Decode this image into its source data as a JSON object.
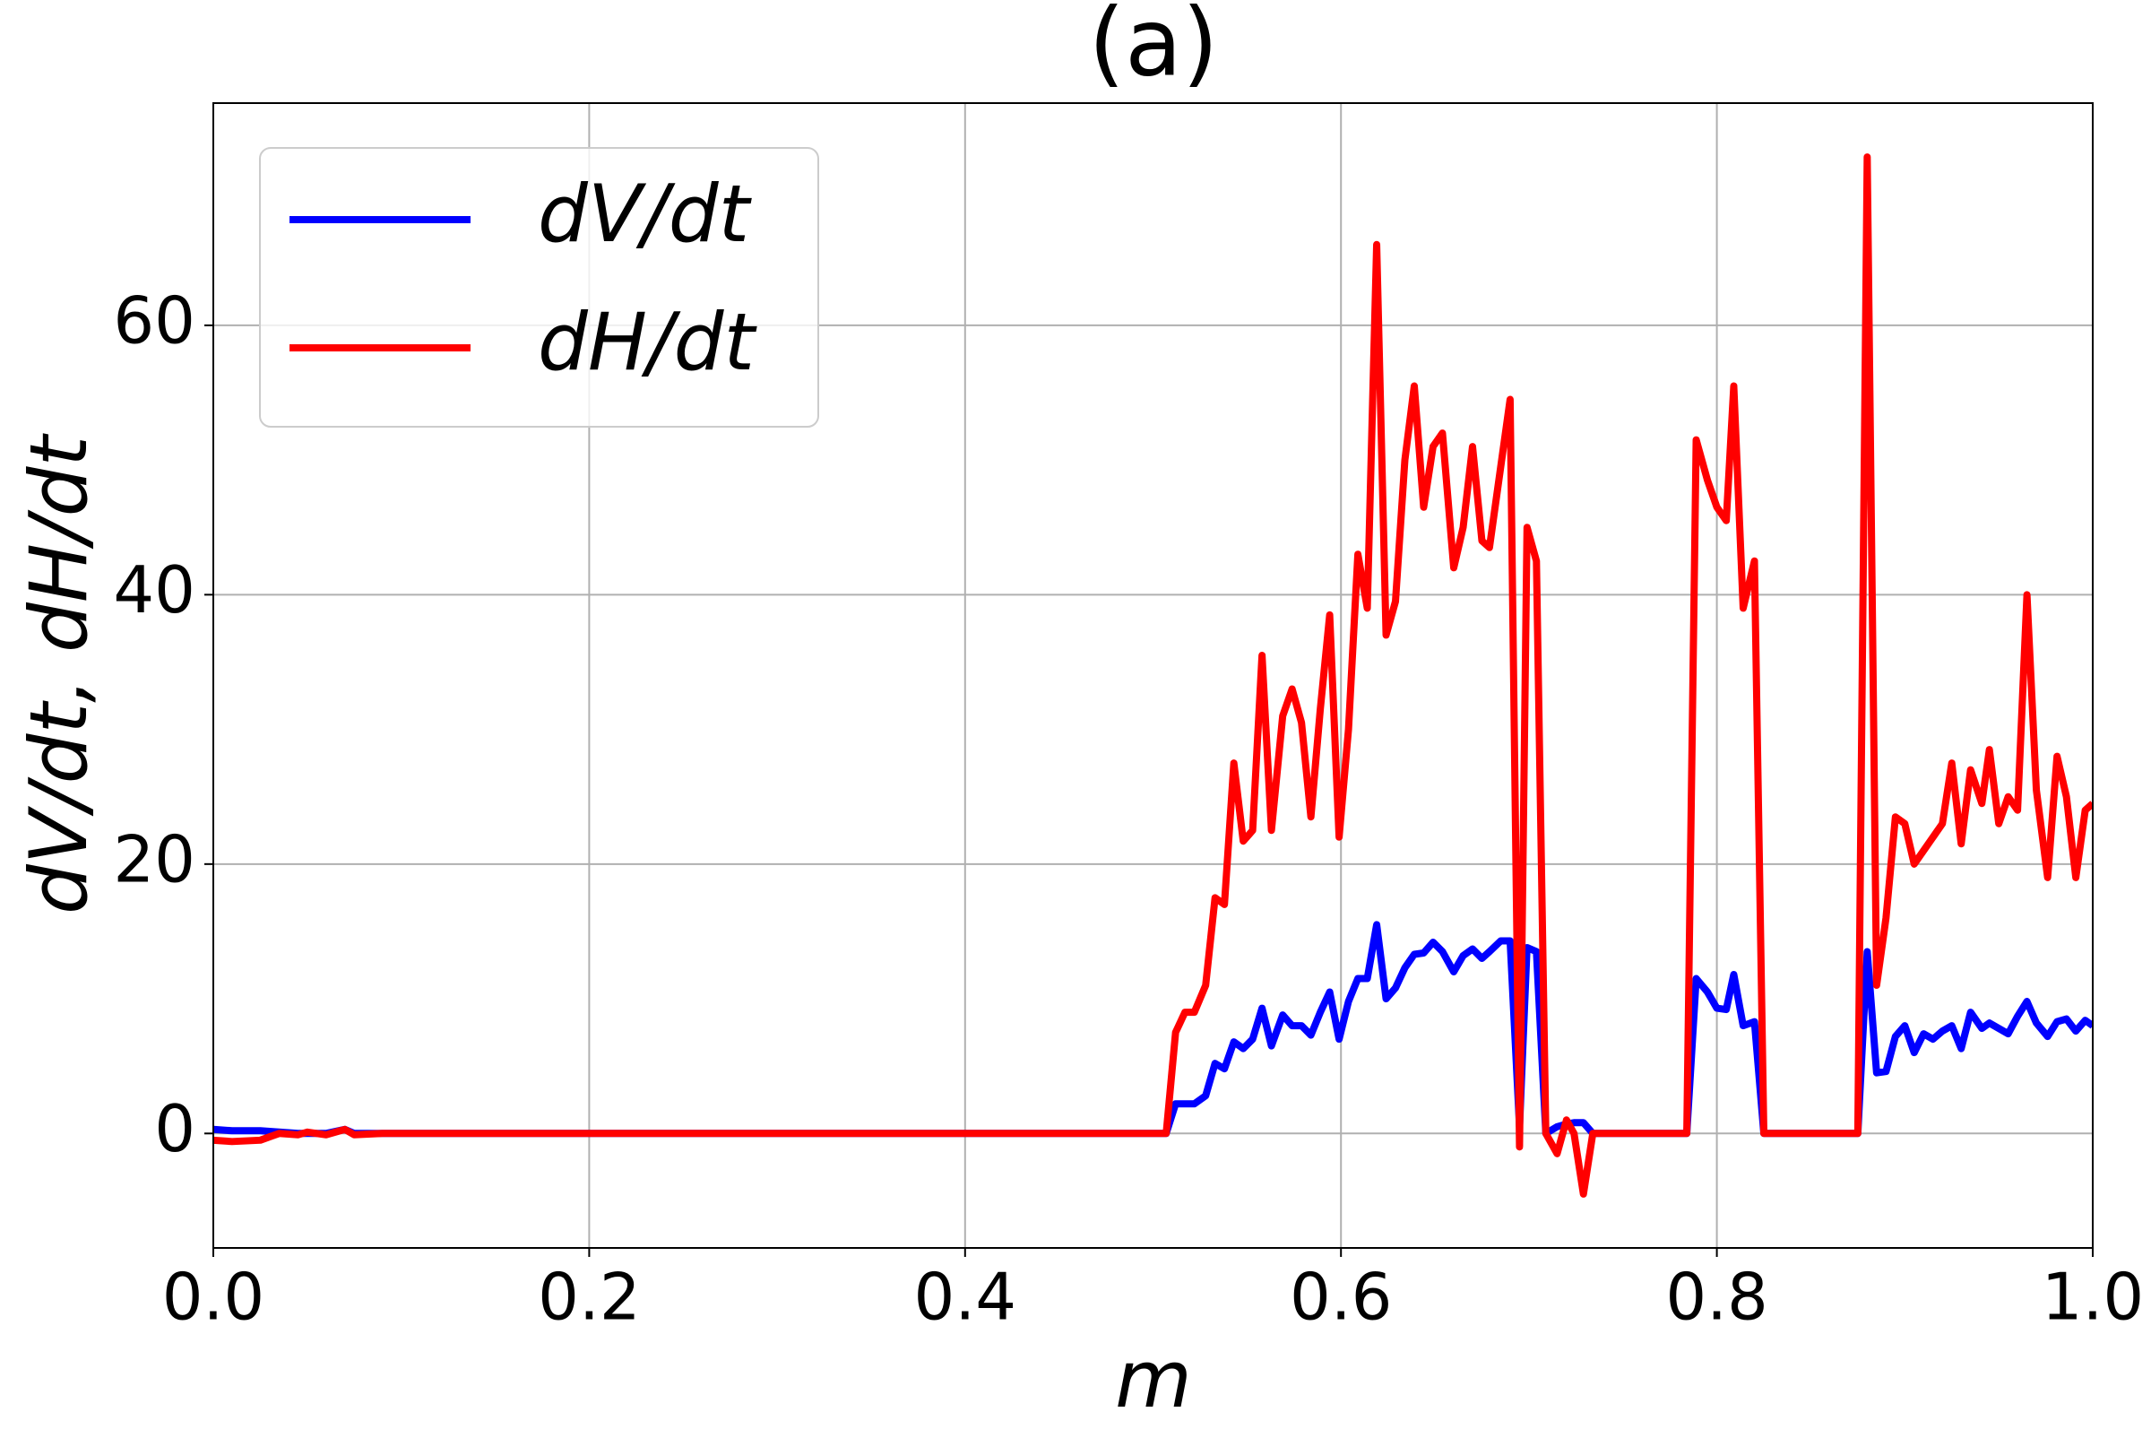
{
  "chart_data": {
    "type": "line",
    "title": "(a)",
    "x_label": "m",
    "y_label": "dV/dt, dH/dt",
    "x": [
      0,
      0.01,
      0.025,
      0.035,
      0.045,
      0.05,
      0.06,
      0.07,
      0.075,
      0.09,
      0.1,
      0.5,
      0.507,
      0.512,
      0.517,
      0.522,
      0.528,
      0.533,
      0.538,
      0.543,
      0.548,
      0.553,
      0.558,
      0.563,
      0.569,
      0.574,
      0.579,
      0.584,
      0.589,
      0.594,
      0.599,
      0.604,
      0.609,
      0.614,
      0.619,
      0.624,
      0.629,
      0.634,
      0.639,
      0.644,
      0.649,
      0.654,
      0.66,
      0.665,
      0.67,
      0.675,
      0.679,
      0.685,
      0.69,
      0.695,
      0.699,
      0.704,
      0.709,
      0.715,
      0.72,
      0.724,
      0.729,
      0.734,
      0.781,
      0.784,
      0.789,
      0.795,
      0.8,
      0.805,
      0.809,
      0.814,
      0.82,
      0.825,
      0.875,
      0.88,
      0.885,
      0.89,
      0.895,
      0.9,
      0.905,
      0.91,
      0.915,
      0.92,
      0.925,
      0.93,
      0.935,
      0.941,
      0.945,
      0.95,
      0.955,
      0.96,
      0.965,
      0.97,
      0.976,
      0.981,
      0.986,
      0.991,
      0.996,
      1.0
    ],
    "series": [
      {
        "name": "dV/dt",
        "color": "#0000ff",
        "values": [
          0.3,
          0.2,
          0.2,
          0.1,
          0,
          0,
          0,
          0.3,
          0,
          0,
          0,
          0,
          0,
          2.2,
          2.2,
          2.2,
          2.8,
          5.2,
          4.8,
          6.8,
          6.3,
          7,
          9.3,
          6.5,
          8.8,
          8,
          8,
          7.3,
          9,
          10.5,
          7,
          9.8,
          11.5,
          11.5,
          15.5,
          10,
          10.8,
          12.3,
          13.3,
          13.4,
          14.2,
          13.5,
          12,
          13.2,
          13.7,
          13,
          13.5,
          14.3,
          14.3,
          0.5,
          13.8,
          13.5,
          0,
          0.5,
          0.7,
          0.8,
          0.8,
          0,
          0,
          0,
          11.5,
          10.5,
          9.3,
          9.2,
          11.8,
          8,
          8.3,
          0,
          0,
          13.5,
          4.5,
          4.6,
          7.2,
          8,
          6,
          7.4,
          7,
          7.6,
          8,
          6.3,
          9,
          7.8,
          8.2,
          7.8,
          7.4,
          8.7,
          9.8,
          8.2,
          7.2,
          8.3,
          8.5,
          7.6,
          8.4,
          8
        ]
      },
      {
        "name": "dH/dt",
        "color": "#ff0000",
        "values": [
          -0.5,
          -0.6,
          -0.5,
          0,
          -0.1,
          0.1,
          -0.1,
          0.3,
          -0.1,
          0,
          0,
          0,
          0,
          7.5,
          9,
          9,
          11,
          17.5,
          17,
          27.5,
          21.7,
          22.5,
          35.5,
          22.5,
          31,
          33,
          30.5,
          23.5,
          31.5,
          38.5,
          22,
          30,
          43,
          39,
          66,
          37,
          39.5,
          50,
          55.5,
          46.5,
          51,
          52,
          42,
          45,
          51,
          44,
          43.5,
          49.5,
          54.5,
          -1,
          45,
          42.5,
          0,
          -1.5,
          1,
          0,
          -4.5,
          0,
          0,
          0,
          51.5,
          48.5,
          46.5,
          45.5,
          55.5,
          39,
          42.5,
          0,
          0,
          72.5,
          11,
          16,
          23.5,
          23,
          20,
          21,
          22,
          23,
          27.5,
          21.5,
          27,
          24.5,
          28.5,
          23,
          25,
          24,
          40,
          25.5,
          19,
          28,
          25,
          19,
          24,
          24.5
        ]
      }
    ],
    "xlim": [
      0,
      1
    ],
    "ylim": [
      -8.5,
      76.5
    ],
    "xticks": [
      {
        "value": 0,
        "label": "0.0"
      },
      0.2,
      0.4,
      0.6,
      0.8,
      {
        "value": 1,
        "label": "1.0"
      }
    ],
    "yticks": [
      0,
      20,
      40,
      60
    ],
    "grid": true,
    "legend": "upper left"
  }
}
